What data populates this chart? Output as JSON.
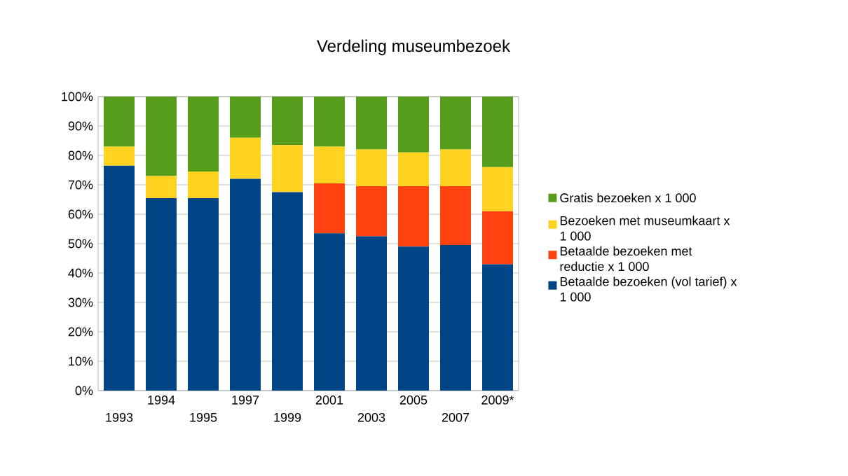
{
  "chart_data": {
    "type": "bar",
    "title": "Verdeling museumbezoek",
    "categories": [
      "1993",
      "1994",
      "1995",
      "1997",
      "1999",
      "2001",
      "2003",
      "2005",
      "2007",
      "2009*"
    ],
    "stacked": true,
    "series": [
      {
        "name": "Betaalde bezoeken (vol tarief) x 1 000",
        "color": "#004586",
        "values": [
          76.5,
          65.5,
          65.5,
          72,
          67.5,
          53.5,
          52.5,
          49,
          49.5,
          43
        ]
      },
      {
        "name": "Betaalde bezoeken met reductie x 1 000",
        "color": "#ff420e",
        "values": [
          0,
          0,
          0,
          0,
          0,
          17,
          17,
          20.5,
          20,
          18
        ]
      },
      {
        "name": "Bezoeken met museumkaart x 1 000",
        "color": "#ffd320",
        "values": [
          6.5,
          7.5,
          9,
          14,
          16,
          12.5,
          12.5,
          11.5,
          12.5,
          15
        ]
      },
      {
        "name": "Gratis bezoeken x 1 000",
        "color": "#579d1c",
        "values": [
          17,
          27,
          25.5,
          14,
          16.5,
          17,
          18,
          19,
          18,
          24
        ]
      }
    ],
    "ylim": [
      0,
      100
    ],
    "yticks": [
      {
        "value": 0,
        "label": "0%"
      },
      {
        "value": 10,
        "label": "10%"
      },
      {
        "value": 20,
        "label": "20%"
      },
      {
        "value": 30,
        "label": "30%"
      },
      {
        "value": 40,
        "label": "40%"
      },
      {
        "value": 50,
        "label": "50%"
      },
      {
        "value": 60,
        "label": "60%"
      },
      {
        "value": 70,
        "label": "70%"
      },
      {
        "value": 80,
        "label": "80%"
      },
      {
        "value": 90,
        "label": "90%"
      },
      {
        "value": 100,
        "label": "100%"
      }
    ],
    "grid": "y",
    "legend": "right"
  }
}
